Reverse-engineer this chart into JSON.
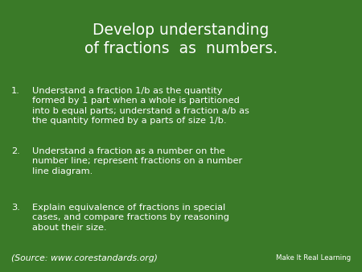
{
  "background_color": "#3a7a28",
  "title_line1": "Develop understanding",
  "title_line2": "of fractions  as  numbers.",
  "title_color": "#ffffff",
  "title_fontsize": 13.5,
  "body_color": "#ffffff",
  "body_fontsize": 8.2,
  "source_fontsize": 7.8,
  "brand_fontsize": 6.2,
  "source_text": "(Source: www.corestandards.org)",
  "brand_text": "Make It Real Learning",
  "items": [
    {
      "number": "1.",
      "text": "Understand a fraction 1/b as the quantity\nformed by 1 part when a whole is partitioned\ninto b equal parts; understand a fraction a/b as\nthe quantity formed by a parts of size 1/b."
    },
    {
      "number": "2.",
      "text": "Understand a fraction as a number on the\nnumber line; represent fractions on a number\nline diagram."
    },
    {
      "number": "3.",
      "text": "Explain equivalence of fractions in special\ncases, and compare fractions by reasoning\nabout their size."
    }
  ]
}
